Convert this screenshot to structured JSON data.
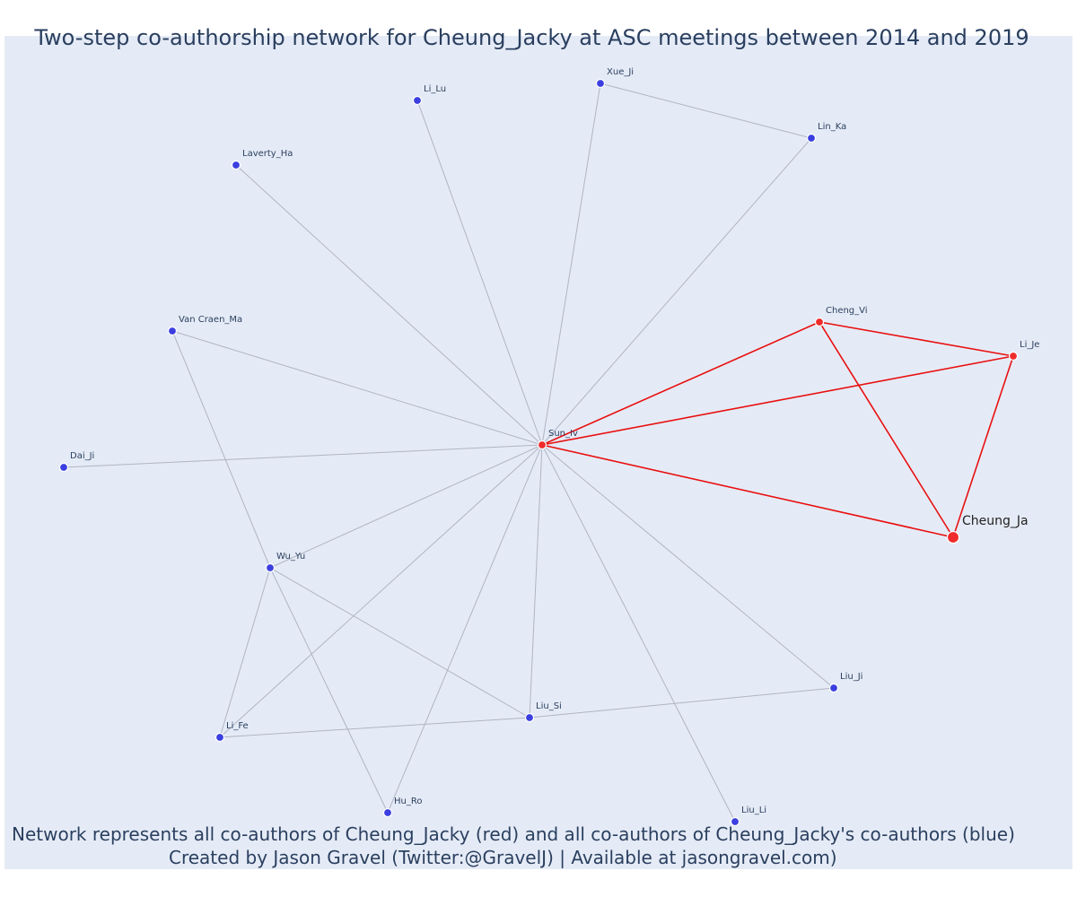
{
  "title": "Two-step co-authorship network for Cheung_Jacky at ASC meetings between 2014 and 2019",
  "footer": {
    "line1": "Network represents all co-authors of Cheung_Jacky (red) and all co-authors of Cheung_Jacky's co-authors (blue)",
    "line2": "Created by Jason Gravel (Twitter:@GravelJ) | Available at jasongravel.com)"
  },
  "colors": {
    "background": "#e5ebf6",
    "first_step_node": "#ef2b2b",
    "second_step_node": "#3b3fe0",
    "first_step_edge": "#e81010",
    "second_step_edge": "#b0b4c4",
    "text": "#2a3f5f"
  },
  "network": {
    "focal": "Cheung_Ja",
    "nodes": [
      {
        "id": "Cheung_Ja",
        "group": "focal"
      },
      {
        "id": "Sun_Iv",
        "group": "coauthor"
      },
      {
        "id": "Cheng_Vi",
        "group": "coauthor"
      },
      {
        "id": "Li_Je",
        "group": "coauthor"
      },
      {
        "id": "Xue_Ji",
        "group": "second"
      },
      {
        "id": "Li_Lu",
        "group": "second"
      },
      {
        "id": "Lin_Ka",
        "group": "second"
      },
      {
        "id": "Laverty_Ha",
        "group": "second"
      },
      {
        "id": "Van Craen_Ma",
        "group": "second"
      },
      {
        "id": "Dai_Ji",
        "group": "second"
      },
      {
        "id": "Wu_Yu",
        "group": "second"
      },
      {
        "id": "Li_Fe",
        "group": "second"
      },
      {
        "id": "Liu_Si",
        "group": "second"
      },
      {
        "id": "Liu_Ji",
        "group": "second"
      },
      {
        "id": "Hu_Ro",
        "group": "second"
      },
      {
        "id": "Liu_Li",
        "group": "second"
      }
    ],
    "edges": [
      {
        "source": "Sun_Iv",
        "target": "Cheung_Ja",
        "group": "first"
      },
      {
        "source": "Sun_Iv",
        "target": "Cheng_Vi",
        "group": "first"
      },
      {
        "source": "Sun_Iv",
        "target": "Li_Je",
        "group": "first"
      },
      {
        "source": "Cheng_Vi",
        "target": "Li_Je",
        "group": "first"
      },
      {
        "source": "Cheng_Vi",
        "target": "Cheung_Ja",
        "group": "first"
      },
      {
        "source": "Li_Je",
        "target": "Cheung_Ja",
        "group": "first"
      },
      {
        "source": "Sun_Iv",
        "target": "Li_Lu",
        "group": "second"
      },
      {
        "source": "Sun_Iv",
        "target": "Xue_Ji",
        "group": "second"
      },
      {
        "source": "Sun_Iv",
        "target": "Lin_Ka",
        "group": "second"
      },
      {
        "source": "Sun_Iv",
        "target": "Laverty_Ha",
        "group": "second"
      },
      {
        "source": "Sun_Iv",
        "target": "Van Craen_Ma",
        "group": "second"
      },
      {
        "source": "Sun_Iv",
        "target": "Dai_Ji",
        "group": "second"
      },
      {
        "source": "Sun_Iv",
        "target": "Wu_Yu",
        "group": "second"
      },
      {
        "source": "Sun_Iv",
        "target": "Li_Fe",
        "group": "second"
      },
      {
        "source": "Sun_Iv",
        "target": "Hu_Ro",
        "group": "second"
      },
      {
        "source": "Sun_Iv",
        "target": "Liu_Si",
        "group": "second"
      },
      {
        "source": "Sun_Iv",
        "target": "Liu_Li",
        "group": "second"
      },
      {
        "source": "Sun_Iv",
        "target": "Liu_Ji",
        "group": "second"
      },
      {
        "source": "Xue_Ji",
        "target": "Lin_Ka",
        "group": "second"
      },
      {
        "source": "Van Craen_Ma",
        "target": "Wu_Yu",
        "group": "second"
      },
      {
        "source": "Wu_Yu",
        "target": "Li_Fe",
        "group": "second"
      },
      {
        "source": "Wu_Yu",
        "target": "Hu_Ro",
        "group": "second"
      },
      {
        "source": "Wu_Yu",
        "target": "Liu_Si",
        "group": "second"
      },
      {
        "source": "Li_Fe",
        "target": "Liu_Si",
        "group": "second"
      },
      {
        "source": "Liu_Si",
        "target": "Liu_Ji",
        "group": "second"
      }
    ]
  }
}
